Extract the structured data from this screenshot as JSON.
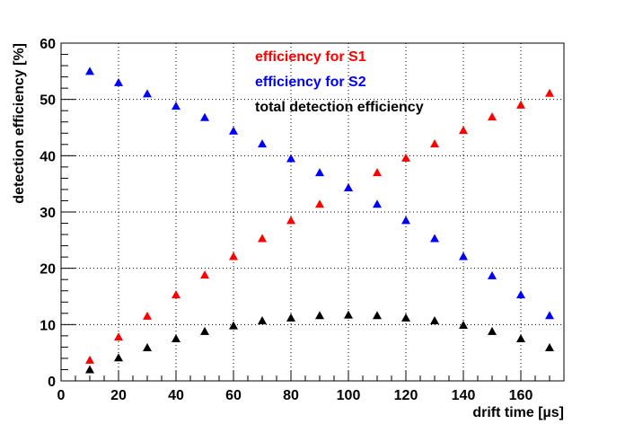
{
  "chart_data": {
    "type": "scatter",
    "xlabel": "drift time [µs]",
    "ylabel": "detection efficiency [%]",
    "xlim": [
      0,
      175
    ],
    "ylim": [
      0,
      60
    ],
    "xticks": [
      0,
      20,
      40,
      60,
      80,
      100,
      120,
      140,
      160
    ],
    "yticks": [
      0,
      10,
      20,
      30,
      40,
      50,
      60
    ],
    "grid": true,
    "legend_position": "top-center",
    "marker": "triangle",
    "series": [
      {
        "name": "efficiency for S1",
        "color": "#ff0000",
        "x": [
          10,
          20,
          30,
          40,
          50,
          60,
          70,
          80,
          90,
          100,
          110,
          120,
          130,
          140,
          150,
          160,
          170
        ],
        "y": [
          3.7,
          7.8,
          11.5,
          15.3,
          18.8,
          22.1,
          25.3,
          28.5,
          31.4,
          34.3,
          37.0,
          39.6,
          42.1,
          44.5,
          46.9,
          49.0,
          51.1
        ]
      },
      {
        "name": "efficiency for S2",
        "color": "#0000ff",
        "x": [
          10,
          20,
          30,
          40,
          50,
          60,
          70,
          80,
          90,
          100,
          110,
          120,
          130,
          140,
          150,
          160,
          170
        ],
        "y": [
          55.0,
          53.0,
          51.0,
          48.8,
          46.8,
          44.4,
          42.1,
          39.5,
          37.0,
          34.3,
          31.4,
          28.5,
          25.3,
          22.1,
          18.7,
          15.3,
          11.6
        ]
      },
      {
        "name": "total detection efficiency",
        "color": "#000000",
        "x": [
          10,
          20,
          30,
          40,
          50,
          60,
          70,
          80,
          90,
          100,
          110,
          120,
          130,
          140,
          150,
          160,
          170
        ],
        "y": [
          2.0,
          4.1,
          5.9,
          7.5,
          8.8,
          9.8,
          10.7,
          11.2,
          11.6,
          11.7,
          11.6,
          11.2,
          10.7,
          9.9,
          8.8,
          7.5,
          5.9
        ]
      }
    ]
  }
}
